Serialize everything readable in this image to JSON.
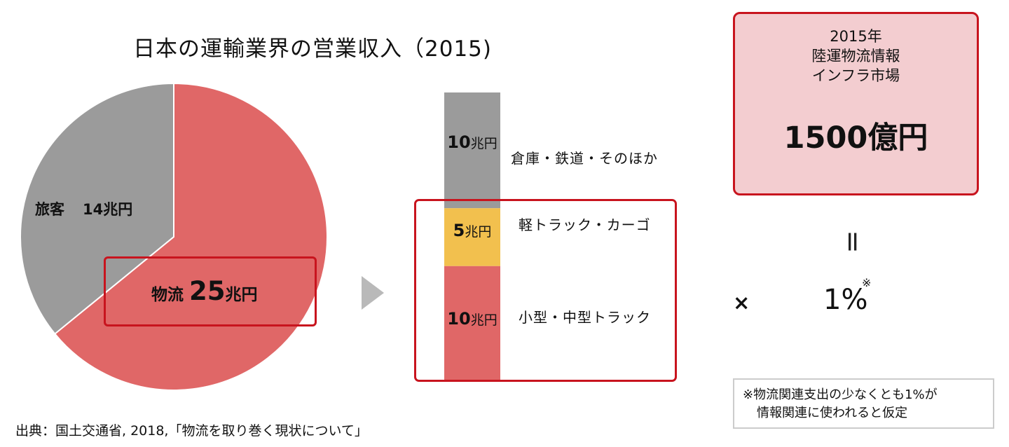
{
  "chart_data": [
    {
      "type": "pie",
      "title": "日本の運輸業界の営業収入（2015)",
      "slices": [
        {
          "name": "物流",
          "value": 25,
          "value_label": "25兆円",
          "color": "#e06767"
        },
        {
          "name": "旅客",
          "value": 14,
          "value_label": "14兆円",
          "color": "#9b9b9b"
        }
      ],
      "start_angle_deg": 0,
      "direction": "clockwise"
    },
    {
      "type": "bar",
      "stacked": true,
      "unit": "兆円",
      "segments": [
        {
          "name": "倉庫・鉄道・そのほか",
          "value": 10,
          "color": "#9b9b9b"
        },
        {
          "name": "軽トラック・カーゴ",
          "value": 5,
          "color": "#f2c04e"
        },
        {
          "name": "小型・中型トラック",
          "value": 10,
          "color": "#e06767"
        }
      ]
    }
  ],
  "pie_labels": {
    "passenger_name": "旅客",
    "passenger_value": "14兆円",
    "logistics_name": "物流",
    "logistics_number": "25",
    "logistics_unit": "兆円"
  },
  "stack_labels": {
    "seg1_number": "10",
    "seg1_unit": "兆円",
    "seg1_name": "倉庫・鉄道・そのほか",
    "seg2_number": "5",
    "seg2_unit": "兆円",
    "seg2_name": "軽トラック・カーゴ",
    "seg3_number": "10",
    "seg3_unit": "兆円",
    "seg3_name": "小型・中型トラック"
  },
  "market": {
    "line1": "2015年",
    "line2": "陸運物流情報",
    "line3": "インフラ市場",
    "value": "1500億円"
  },
  "equals_sign": "=",
  "times_sign": "×",
  "percent": "1%",
  "percent_mark": "※",
  "footnote": {
    "line1": "※物流関連支出の少なくとも1%が",
    "line2": "情報関連に使われると仮定"
  },
  "source": "出典：国土交通省, 2018,「物流を取り巻く現状について」"
}
